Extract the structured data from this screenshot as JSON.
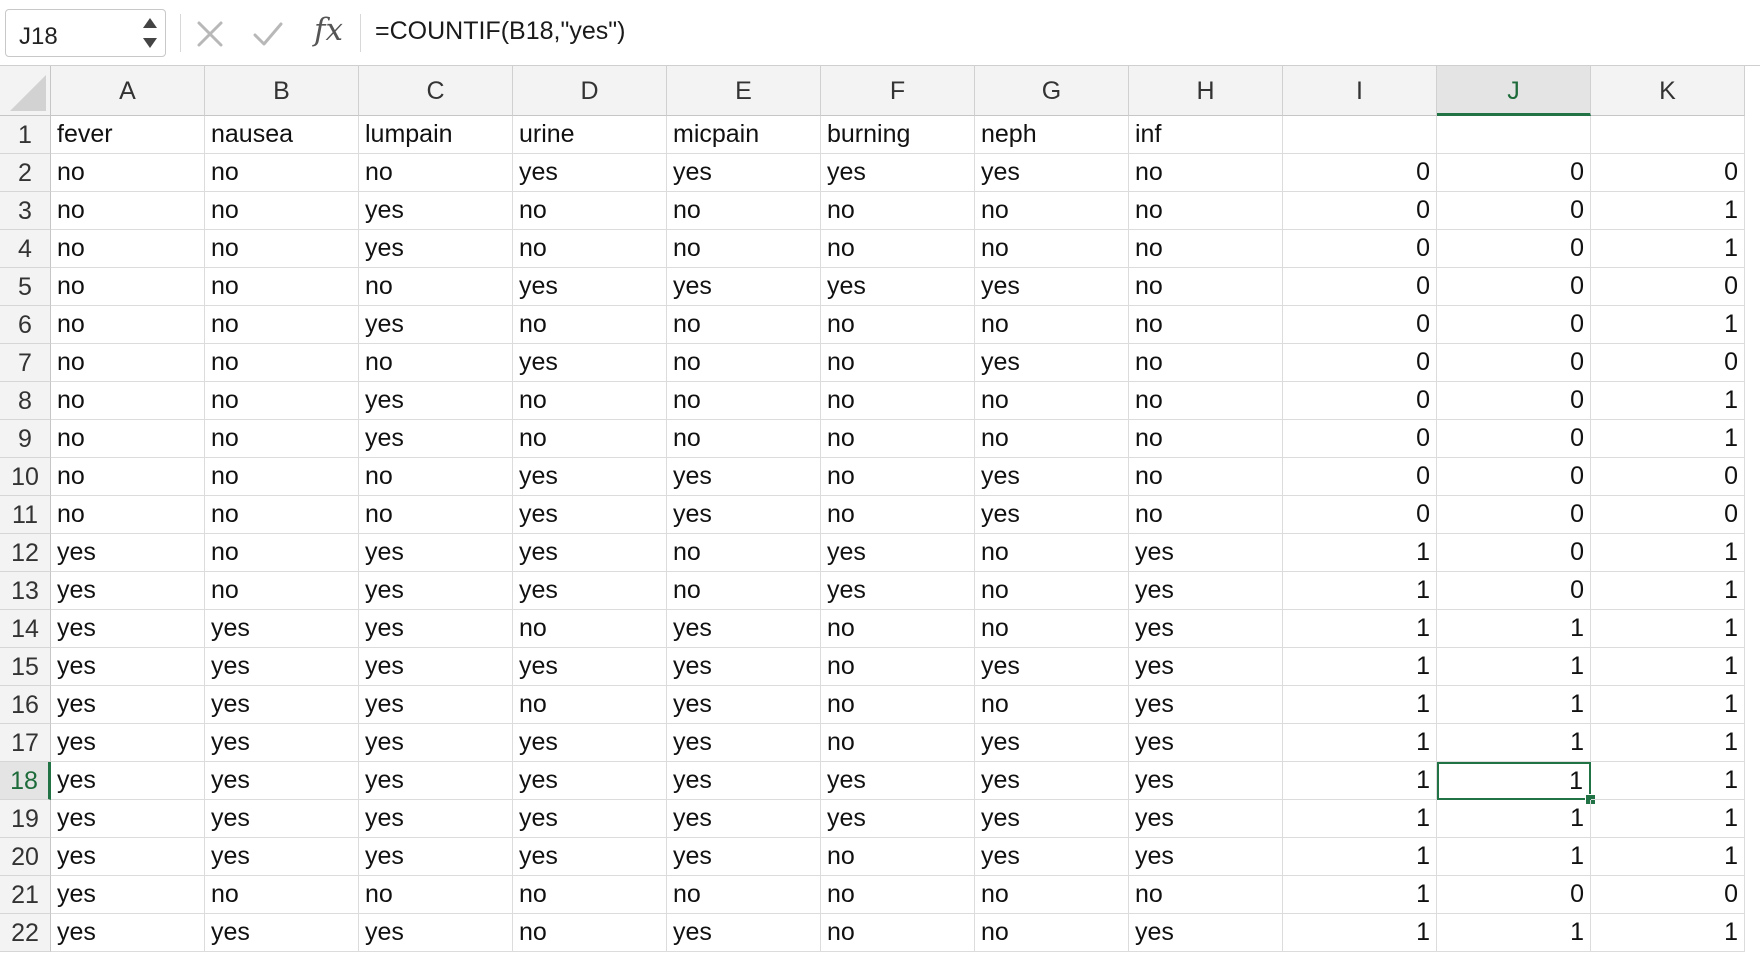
{
  "formula_bar": {
    "name_box": "J18",
    "formula": "=COUNTIF(B18,\"yes\")"
  },
  "icons": {
    "cancel": "close-icon",
    "enter": "checkmark-icon",
    "function": "fx-icon"
  },
  "colors": {
    "accent": "#217346",
    "header_bg": "#f3f3f3",
    "gridline": "#dcdcdc"
  },
  "sheet": {
    "columns": [
      "A",
      "B",
      "C",
      "D",
      "E",
      "F",
      "G",
      "H",
      "I",
      "J",
      "K"
    ],
    "row_numbers": [
      "1",
      "2",
      "3",
      "4",
      "5",
      "6",
      "7",
      "8",
      "9",
      "10",
      "11",
      "12",
      "13",
      "14",
      "15",
      "16",
      "17",
      "18",
      "19",
      "20",
      "21",
      "22"
    ],
    "active_cell": {
      "row": 18,
      "col": "J"
    },
    "rows": [
      [
        "fever",
        "nausea",
        "lumpain",
        "urine",
        "micpain",
        "burning",
        "neph",
        "inf",
        "",
        "",
        ""
      ],
      [
        "no",
        "no",
        "no",
        "yes",
        "yes",
        "yes",
        "yes",
        "no",
        "0",
        "0",
        "0"
      ],
      [
        "no",
        "no",
        "yes",
        "no",
        "no",
        "no",
        "no",
        "no",
        "0",
        "0",
        "1"
      ],
      [
        "no",
        "no",
        "yes",
        "no",
        "no",
        "no",
        "no",
        "no",
        "0",
        "0",
        "1"
      ],
      [
        "no",
        "no",
        "no",
        "yes",
        "yes",
        "yes",
        "yes",
        "no",
        "0",
        "0",
        "0"
      ],
      [
        "no",
        "no",
        "yes",
        "no",
        "no",
        "no",
        "no",
        "no",
        "0",
        "0",
        "1"
      ],
      [
        "no",
        "no",
        "no",
        "yes",
        "no",
        "no",
        "yes",
        "no",
        "0",
        "0",
        "0"
      ],
      [
        "no",
        "no",
        "yes",
        "no",
        "no",
        "no",
        "no",
        "no",
        "0",
        "0",
        "1"
      ],
      [
        "no",
        "no",
        "yes",
        "no",
        "no",
        "no",
        "no",
        "no",
        "0",
        "0",
        "1"
      ],
      [
        "no",
        "no",
        "no",
        "yes",
        "yes",
        "no",
        "yes",
        "no",
        "0",
        "0",
        "0"
      ],
      [
        "no",
        "no",
        "no",
        "yes",
        "yes",
        "no",
        "yes",
        "no",
        "0",
        "0",
        "0"
      ],
      [
        "yes",
        "no",
        "yes",
        "yes",
        "no",
        "yes",
        "no",
        "yes",
        "1",
        "0",
        "1"
      ],
      [
        "yes",
        "no",
        "yes",
        "yes",
        "no",
        "yes",
        "no",
        "yes",
        "1",
        "0",
        "1"
      ],
      [
        "yes",
        "yes",
        "yes",
        "no",
        "yes",
        "no",
        "no",
        "yes",
        "1",
        "1",
        "1"
      ],
      [
        "yes",
        "yes",
        "yes",
        "yes",
        "yes",
        "no",
        "yes",
        "yes",
        "1",
        "1",
        "1"
      ],
      [
        "yes",
        "yes",
        "yes",
        "no",
        "yes",
        "no",
        "no",
        "yes",
        "1",
        "1",
        "1"
      ],
      [
        "yes",
        "yes",
        "yes",
        "yes",
        "yes",
        "no",
        "yes",
        "yes",
        "1",
        "1",
        "1"
      ],
      [
        "yes",
        "yes",
        "yes",
        "yes",
        "yes",
        "yes",
        "yes",
        "yes",
        "1",
        "1",
        "1"
      ],
      [
        "yes",
        "yes",
        "yes",
        "yes",
        "yes",
        "yes",
        "yes",
        "yes",
        "1",
        "1",
        "1"
      ],
      [
        "yes",
        "yes",
        "yes",
        "yes",
        "yes",
        "no",
        "yes",
        "yes",
        "1",
        "1",
        "1"
      ],
      [
        "yes",
        "no",
        "no",
        "no",
        "no",
        "no",
        "no",
        "no",
        "1",
        "0",
        "0"
      ],
      [
        "yes",
        "yes",
        "yes",
        "no",
        "yes",
        "no",
        "no",
        "yes",
        "1",
        "1",
        "1"
      ]
    ]
  }
}
